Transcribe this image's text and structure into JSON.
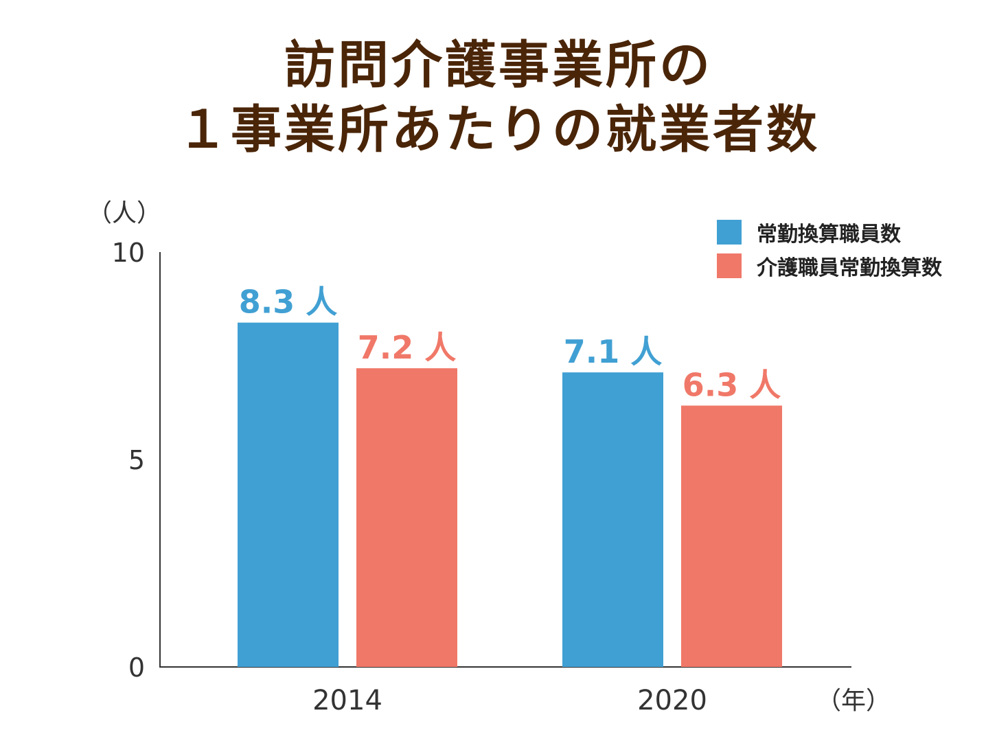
{
  "title_line1": "訪問介護事業所の",
  "title_line2": "１事業所あたりの就業者数",
  "colors": {
    "title": "#4a2508",
    "series1": "#41a0d3",
    "series2": "#f07868",
    "axis": "#333333",
    "text": "#333333"
  },
  "chart_data": {
    "type": "bar",
    "ylabel": "（人）",
    "xlabel": "（年）",
    "ylim": [
      0,
      10
    ],
    "yticks": [
      "0",
      "5",
      "10"
    ],
    "categories": [
      "2014",
      "2020"
    ],
    "series": [
      {
        "name": "常勤換算職員数",
        "values": [
          8.3,
          7.1
        ],
        "labels": [
          "8.3 人",
          "7.1 人"
        ]
      },
      {
        "name": "介護職員常勤換算数",
        "values": [
          7.2,
          6.3
        ],
        "labels": [
          "7.2 人",
          "6.3 人"
        ]
      }
    ],
    "legend_position": "top-right",
    "grid": false
  }
}
